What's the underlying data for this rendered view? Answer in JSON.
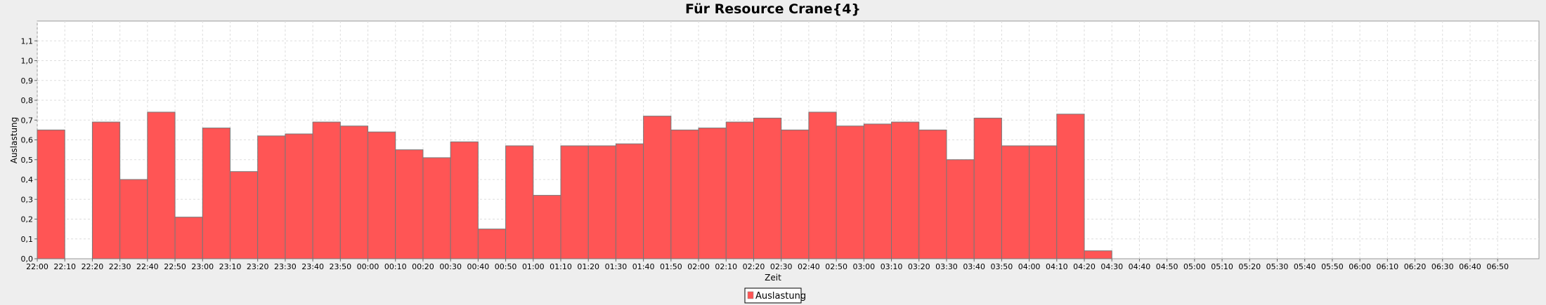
{
  "chart_data": {
    "type": "bar",
    "title": "Für Resource Crane{4}",
    "xlabel": "Zeit",
    "ylabel": "Auslastung",
    "ylim": [
      0,
      1.2
    ],
    "yticks": [
      "0,0",
      "0,1",
      "0,2",
      "0,3",
      "0,4",
      "0,5",
      "0,6",
      "0,7",
      "0,8",
      "0,9",
      "1,0",
      "1,1"
    ],
    "grid": true,
    "legend_position": "bottom",
    "categories": [
      "22:00",
      "22:10",
      "22:20",
      "22:30",
      "22:40",
      "22:50",
      "23:00",
      "23:10",
      "23:20",
      "23:30",
      "23:40",
      "23:50",
      "00:00",
      "00:10",
      "00:20",
      "00:30",
      "00:40",
      "00:50",
      "01:00",
      "01:10",
      "01:20",
      "01:30",
      "01:40",
      "01:50",
      "02:00",
      "02:10",
      "02:20",
      "02:30",
      "02:40",
      "02:50",
      "03:00",
      "03:10",
      "03:20",
      "03:30",
      "03:40",
      "03:50",
      "04:00",
      "04:10",
      "04:20",
      "04:30",
      "04:40",
      "04:50",
      "05:00",
      "05:10",
      "05:20",
      "05:30",
      "05:40",
      "05:50",
      "06:00",
      "06:10",
      "06:20",
      "06:30",
      "06:40",
      "06:50"
    ],
    "series": [
      {
        "name": "Auslastung",
        "color": "#ff5555",
        "values": [
          0.65,
          0,
          0.69,
          0.4,
          0.74,
          0.21,
          0.66,
          0.44,
          0.62,
          0.63,
          0.69,
          0.67,
          0.64,
          0.55,
          0.51,
          0.59,
          0.15,
          0.57,
          0.32,
          0.57,
          0.57,
          0.58,
          0.72,
          0.65,
          0.66,
          0.69,
          0.71,
          0.65,
          0.74,
          0.67,
          0.68,
          0.69,
          0.65,
          0.5,
          0.71,
          0.57,
          0.57,
          0.73,
          0.04,
          0,
          0,
          0,
          0,
          0,
          0,
          0,
          0,
          0,
          0,
          0,
          0,
          0,
          0,
          0
        ]
      }
    ]
  }
}
